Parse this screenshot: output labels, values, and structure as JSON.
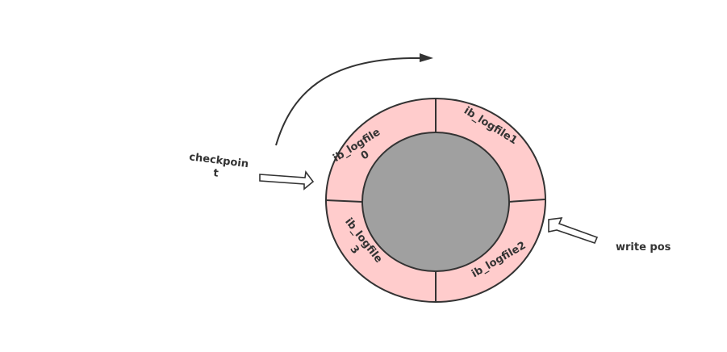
{
  "segments": [
    {
      "label_lines": [
        "ib_logfile",
        "0"
      ]
    },
    {
      "label_lines": [
        "ib_logfile1"
      ]
    },
    {
      "label_lines": [
        "ib_logfile2"
      ]
    },
    {
      "label_lines": [
        "ib_logfile",
        "3"
      ]
    }
  ],
  "markers": {
    "checkpoint": {
      "label_lines": [
        "checkpoin",
        "t"
      ]
    },
    "write_pos": {
      "label": "write pos"
    }
  },
  "colors": {
    "segment_fill": "#ffcccc",
    "inner_fill": "#a0a0a0",
    "stroke": "#333333"
  }
}
